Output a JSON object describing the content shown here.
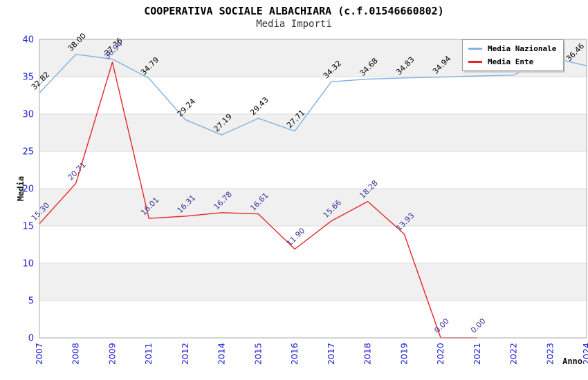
{
  "header": {
    "title": "COOPERATIVA SOCIALE ALBACHIARA (c.f.01546660802)",
    "subtitle": "Media Importi"
  },
  "axes": {
    "x_title": "Anno",
    "y_title": "Media"
  },
  "colors": {
    "nazionale_line": "#7fb2e5",
    "ente_line": "#e52525",
    "tick_label": "#1d1dd8",
    "nazionale_label": "#000000",
    "ente_label": "#33339b",
    "band_fill": "#f0f0f0",
    "grid_line": "#dcdcdc",
    "plot_border": "#a9a9a9"
  },
  "chart_data": {
    "type": "line",
    "title": "COOPERATIVA SOCIALE ALBACHIARA (c.f.01546660802)",
    "subtitle": "Media Importi",
    "xlabel": "Anno",
    "ylabel": "Media",
    "ylim": [
      0,
      40
    ],
    "ytick_step": 5,
    "grid": "horizontal-bands",
    "legend_position": "top-right",
    "categories": [
      "2007",
      "2008",
      "2009",
      "2011",
      "2012",
      "2014",
      "2015",
      "2016",
      "2017",
      "2018",
      "2019",
      "2020",
      "2021",
      "2022",
      "2023",
      "2024"
    ],
    "series": [
      {
        "name": "Media Nazionale",
        "values": [
          32.82,
          38.0,
          37.36,
          34.79,
          29.24,
          27.19,
          29.43,
          27.71,
          34.32,
          34.68,
          34.83,
          34.94,
          35.1,
          35.2,
          37.6,
          36.46
        ],
        "labels": [
          "32.82",
          "38.00",
          "37.36",
          "34.79",
          "29.24",
          "27.19",
          "29.43",
          "27.71",
          "34.32",
          "34.68",
          "34.83",
          "34.94",
          null,
          null,
          null,
          "36.46"
        ]
      },
      {
        "name": "Media Ente",
        "values": [
          15.3,
          20.71,
          36.94,
          16.01,
          16.31,
          16.78,
          16.61,
          11.9,
          15.66,
          18.28,
          13.93,
          0.0,
          0.0,
          null,
          null,
          null
        ],
        "labels": [
          "15.30",
          "20.71",
          "36.94",
          "16.01",
          "16.31",
          "16.78",
          "16.61",
          "11.90",
          "15.66",
          "18.28",
          "13.93",
          "0.00",
          "0.00",
          null,
          null,
          null
        ]
      }
    ]
  }
}
